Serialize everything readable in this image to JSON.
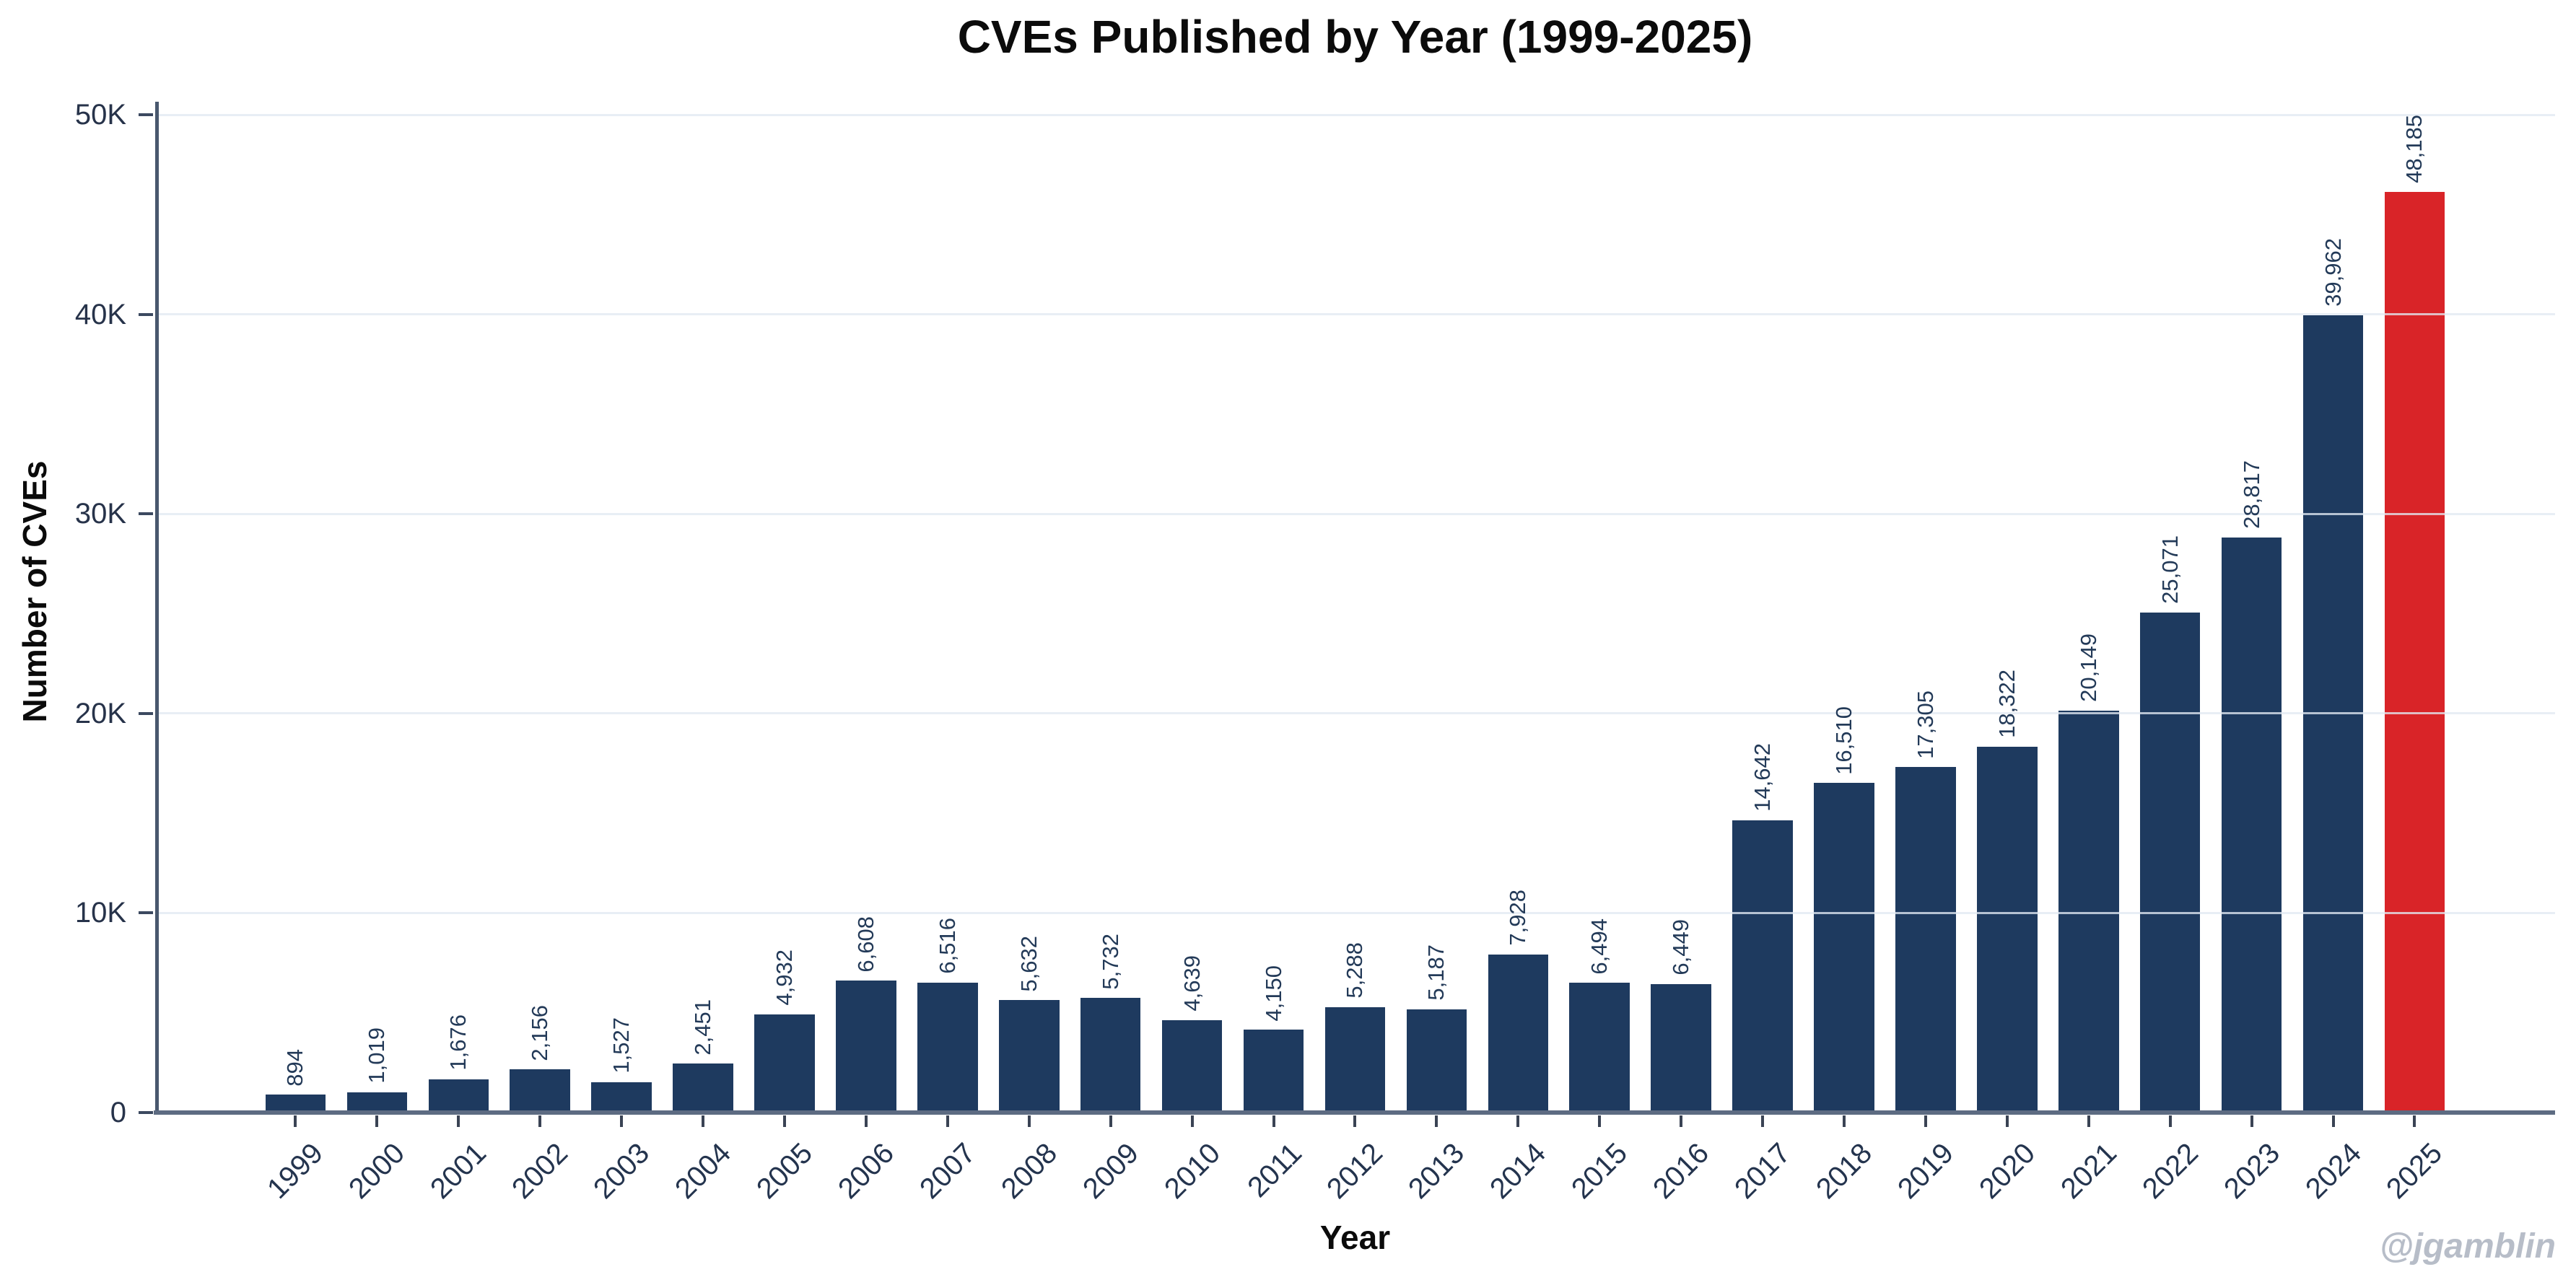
{
  "title": "CVEs Published by Year (1999-2025)",
  "watermark": "@jgamblin",
  "chart_data": {
    "type": "bar",
    "title": "CVEs Published by Year (1999-2025)",
    "xlabel": "Year",
    "ylabel": "Number of CVEs",
    "categories": [
      "1999",
      "2000",
      "2001",
      "2002",
      "2003",
      "2004",
      "2005",
      "2006",
      "2007",
      "2008",
      "2009",
      "2010",
      "2011",
      "2012",
      "2013",
      "2014",
      "2015",
      "2016",
      "2017",
      "2018",
      "2019",
      "2020",
      "2021",
      "2022",
      "2023",
      "2024",
      "2025"
    ],
    "values": [
      894,
      1019,
      1676,
      2156,
      1527,
      2451,
      4932,
      6608,
      6516,
      5632,
      5732,
      4639,
      4150,
      5288,
      5187,
      7928,
      6494,
      6449,
      14642,
      16510,
      17305,
      18322,
      20149,
      25071,
      28817,
      39962,
      48185
    ],
    "value_labels": [
      "894",
      "1,019",
      "1,676",
      "2,156",
      "1,527",
      "2,451",
      "4,932",
      "6,608",
      "6,516",
      "5,632",
      "5,732",
      "4,639",
      "4,150",
      "5,288",
      "5,187",
      "7,928",
      "6,494",
      "6,449",
      "14,642",
      "16,510",
      "17,305",
      "18,322",
      "20,149",
      "25,071",
      "28,817",
      "39,962",
      "48,185"
    ],
    "ylim": [
      0,
      50000
    ],
    "y_ticks": [
      {
        "value": 0,
        "label": "0"
      },
      {
        "value": 10000,
        "label": "10K"
      },
      {
        "value": 20000,
        "label": "20K"
      },
      {
        "value": 30000,
        "label": "30K"
      },
      {
        "value": 40000,
        "label": "40K"
      },
      {
        "value": 50000,
        "label": "50K"
      }
    ],
    "grid": true,
    "legend_position": "none",
    "bar_color": "#1e3a5f",
    "highlight_color": "#d92428",
    "highlight_index": 26
  }
}
